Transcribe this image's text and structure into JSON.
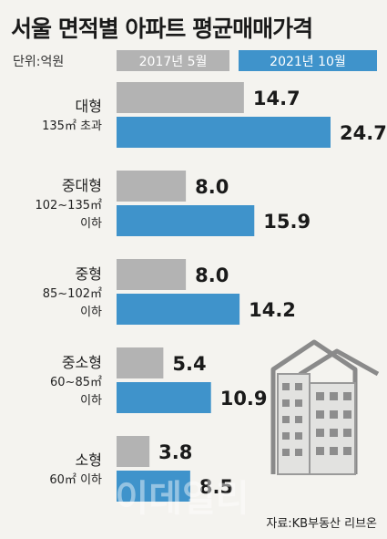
{
  "chart_data": {
    "type": "bar",
    "orientation": "horizontal",
    "title": "서울 면적별 아파트 평균매매가격",
    "unit_label": "단위:억원",
    "categories": [
      {
        "name": "대형",
        "sub": [
          "135㎡ 초과"
        ]
      },
      {
        "name": "중대형",
        "sub": [
          "102~135㎡",
          "이하"
        ]
      },
      {
        "name": "중형",
        "sub": [
          "85~102㎡",
          "이하"
        ]
      },
      {
        "name": "중소형",
        "sub": [
          "60~85㎡",
          "이하"
        ]
      },
      {
        "name": "소형",
        "sub": [
          "60㎡ 이하"
        ]
      }
    ],
    "series": [
      {
        "name": "2017년 5월",
        "color": "#b3b3b3",
        "values": [
          14.7,
          8.0,
          8.0,
          5.4,
          3.8
        ]
      },
      {
        "name": "2021년 10월",
        "color": "#3f93cb",
        "values": [
          24.7,
          15.9,
          14.2,
          10.9,
          8.5
        ]
      }
    ],
    "value_labels": [
      [
        "14.7",
        "8.0",
        "8.0",
        "5.4",
        "3.8"
      ],
      [
        "24.7",
        "15.9",
        "14.2",
        "10.9",
        "8.5"
      ]
    ],
    "xlim": [
      0,
      24.7
    ],
    "legend_position": "top",
    "source": "자료:KB부동산 리브온",
    "watermark": "이데일리"
  }
}
